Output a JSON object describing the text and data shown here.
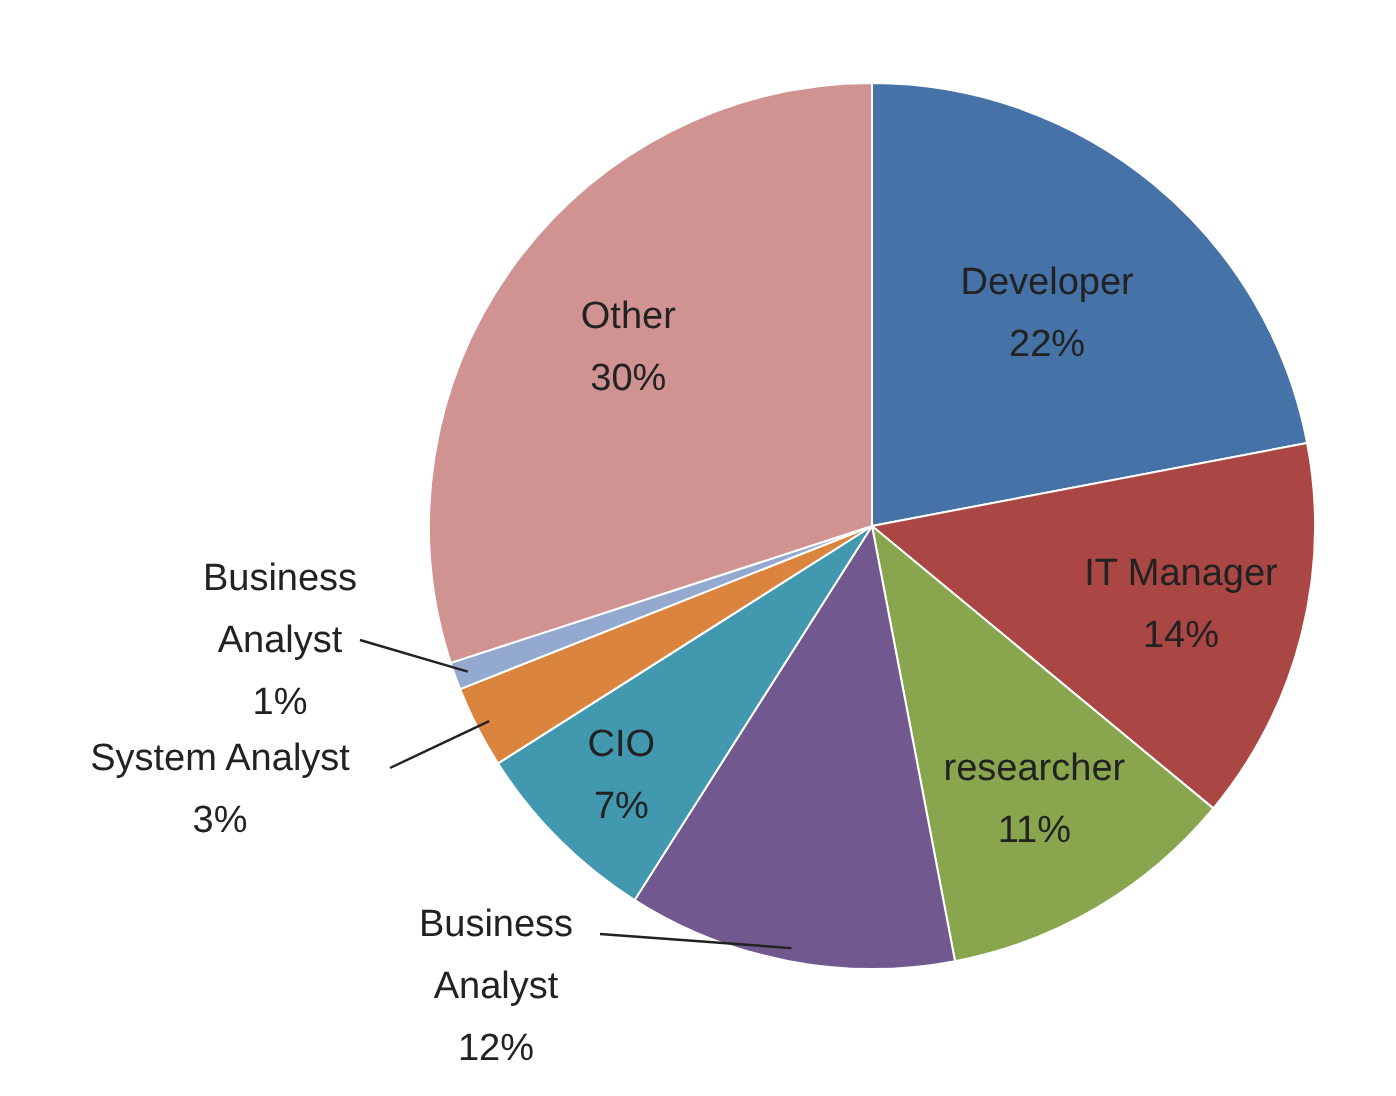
{
  "chart_data": {
    "type": "pie",
    "categories": [
      "Developer",
      "IT Manager",
      "researcher",
      "Business Analyst",
      "CIO",
      "System Analyst",
      "Business Analyst",
      "Other"
    ],
    "values": [
      22,
      14,
      11,
      12,
      7,
      3,
      1,
      30
    ],
    "value_labels": [
      "22%",
      "14%",
      "11%",
      "12%",
      "7%",
      "3%",
      "1%",
      "30%"
    ],
    "colors": [
      "#4572a7",
      "#aa4643",
      "#89a54e",
      "#71588f",
      "#4198af",
      "#db843d",
      "#93a9cf",
      "#d19392"
    ],
    "legend": false
  }
}
